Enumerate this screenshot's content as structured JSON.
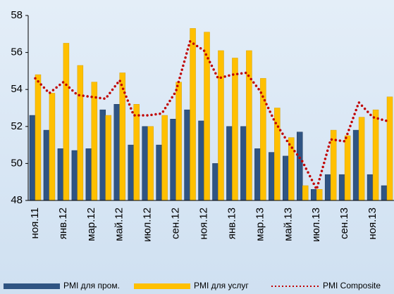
{
  "chart_data": {
    "type": "bar",
    "categories": [
      "ноя.11",
      null,
      "янв.12",
      null,
      "мар.12",
      null,
      "май.12",
      null,
      "июл.12",
      null,
      "сен.12",
      null,
      "ноя.12",
      null,
      "янв.13",
      null,
      "мар.13",
      null,
      "май.13",
      null,
      "июл.13",
      null,
      "сен.13",
      null,
      "ноя.13",
      null
    ],
    "series": [
      {
        "name": "PMI для пром.",
        "color": "#2f5483",
        "type": "bar",
        "values": [
          52.6,
          51.8,
          50.8,
          50.7,
          50.8,
          52.9,
          53.2,
          51.0,
          52.0,
          51.0,
          52.4,
          52.9,
          52.3,
          50.0,
          52.0,
          52.0,
          50.8,
          50.6,
          50.4,
          51.7,
          48.6,
          49.4,
          49.4,
          51.8,
          49.4,
          48.8
        ]
      },
      {
        "name": "PMI для услуг",
        "color": "#ffc000",
        "type": "bar",
        "values": [
          54.8,
          53.8,
          56.5,
          55.3,
          54.4,
          52.6,
          54.9,
          53.2,
          52.0,
          52.6,
          54.4,
          57.3,
          57.1,
          56.1,
          55.7,
          56.1,
          54.6,
          53.0,
          51.4,
          48.8,
          48.6,
          51.8,
          51.5,
          52.5,
          52.9,
          53.6
        ]
      },
      {
        "name": "PMI Composite",
        "color": "#c00000",
        "type": "line",
        "values": [
          54.6,
          53.8,
          54.4,
          53.7,
          53.6,
          53.5,
          54.5,
          52.6,
          52.6,
          52.7,
          53.9,
          56.6,
          56.1,
          54.6,
          54.8,
          54.9,
          53.9,
          52.3,
          51.1,
          50.1,
          48.6,
          51.3,
          51.2,
          53.3,
          52.5,
          52.3
        ]
      }
    ],
    "ylim": [
      48,
      58
    ],
    "yticks": [
      48,
      50,
      52,
      54,
      56,
      58
    ],
    "legend": "bottom"
  }
}
